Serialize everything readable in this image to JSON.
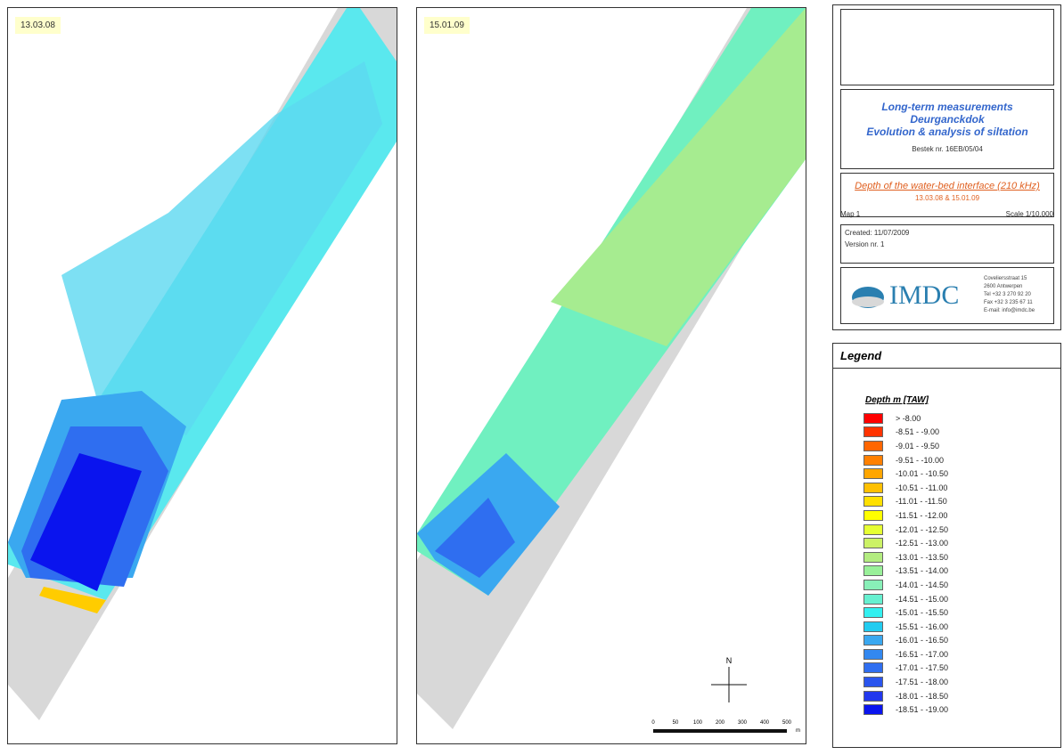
{
  "maps": [
    {
      "date": "13.03.08"
    },
    {
      "date": "15.01.09"
    }
  ],
  "north": "N",
  "scale_bar": {
    "labels": [
      "0",
      "50",
      "100",
      "200",
      "300",
      "400",
      "500"
    ],
    "unit": "m"
  },
  "title_block": {
    "project_lines": [
      "Long-term measurements",
      "Deurganckdok",
      "Evolution & analysis of siltation"
    ],
    "contract": "Bestek nr. 16EB/05/04",
    "map_title": "Depth of the water-bed interface (210 kHz)",
    "map_dates": "13.03.08 & 15.01.09",
    "map_number": "Map 1",
    "scale": "Scale 1/10.000",
    "created": "Created: 11/07/2009",
    "version": "Version nr. 1",
    "company": "IMDC",
    "address": [
      "Coveliersstraat 15",
      "2600 Antwerpen",
      "Tel +32 3 270 92 20",
      "Fax +32 3 235 67 11",
      "E-mail: info@imdc.be"
    ]
  },
  "legend": {
    "title": "Legend",
    "heading": "Depth m [TAW]",
    "items": [
      {
        "label": "> -8.00",
        "color": "#ff0000"
      },
      {
        "label": "-8.51 - -9.00",
        "color": "#ff3300"
      },
      {
        "label": "-9.01 - -9.50",
        "color": "#ff6600"
      },
      {
        "label": "-9.51 - -10.00",
        "color": "#ff8000"
      },
      {
        "label": "-10.01 - -10.50",
        "color": "#ffa600"
      },
      {
        "label": "-10.51 - -11.00",
        "color": "#ffc000"
      },
      {
        "label": "-11.01 - -11.50",
        "color": "#ffe000"
      },
      {
        "label": "-11.51 - -12.00",
        "color": "#ffff00"
      },
      {
        "label": "-12.01 - -12.50",
        "color": "#e6ff33"
      },
      {
        "label": "-12.51 - -13.00",
        "color": "#ccf266"
      },
      {
        "label": "-13.01 - -13.50",
        "color": "#b3ec80"
      },
      {
        "label": "-13.51 - -14.00",
        "color": "#99f099"
      },
      {
        "label": "-14.01 - -14.50",
        "color": "#88f0b8"
      },
      {
        "label": "-14.51 - -15.00",
        "color": "#66f0d0"
      },
      {
        "label": "-15.01 - -15.50",
        "color": "#33f0f0"
      },
      {
        "label": "-15.51 - -16.00",
        "color": "#22ccf0"
      },
      {
        "label": "-16.01 - -16.50",
        "color": "#3aa8f0"
      },
      {
        "label": "-16.51 - -17.00",
        "color": "#3388f0"
      },
      {
        "label": "-17.01 - -17.50",
        "color": "#2f6ef0"
      },
      {
        "label": "-17.51 - -18.00",
        "color": "#2a55ee"
      },
      {
        "label": "-18.01 - -18.50",
        "color": "#2238ee"
      },
      {
        "label": "-18.51 - -19.00",
        "color": "#0a14ee"
      }
    ]
  }
}
